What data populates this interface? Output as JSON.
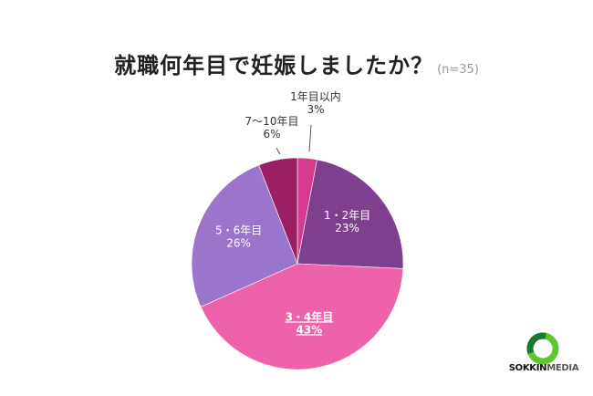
{
  "title": {
    "text": "就職何年目で妊娠しましたか？",
    "note": "(n=35)"
  },
  "logo": {
    "name_main": "SOKKIN",
    "name_sub": "MEDIA"
  },
  "chart_data": {
    "type": "pie",
    "title": "就職何年目で妊娠しましたか？",
    "sample_size": "(n=35)",
    "start_angle_deg": 0,
    "direction": "clockwise",
    "slices": [
      {
        "label": "1年目以内",
        "value": 3,
        "value_text": "3%",
        "color": "#d43c8f",
        "label_outside": true,
        "highlight": false
      },
      {
        "label": "1・2年目",
        "value": 23,
        "value_text": "23%",
        "color": "#7e3f8f",
        "label_outside": false,
        "highlight": false
      },
      {
        "label": "3・4年目",
        "value": 43,
        "value_text": "43%",
        "color": "#ee62a9",
        "label_outside": false,
        "highlight": true
      },
      {
        "label": "5・6年目",
        "value": 26,
        "value_text": "26%",
        "color": "#9b74cc",
        "label_outside": false,
        "highlight": false
      },
      {
        "label": "7〜10年目",
        "value": 6,
        "value_text": "6%",
        "color": "#9a1f63",
        "label_outside": true,
        "highlight": false
      }
    ]
  }
}
